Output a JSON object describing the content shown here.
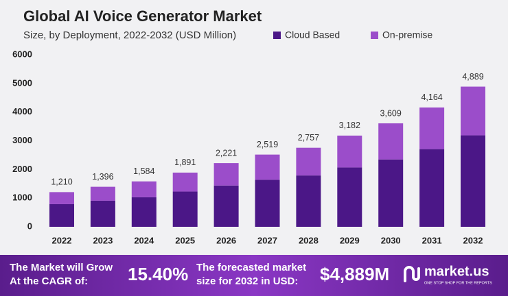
{
  "chart_data": {
    "type": "stacked_bar",
    "title": "Global AI Voice Generator Market",
    "subtitle": "Size, by Deployment, 2022-2032 (USD Million)",
    "categories": [
      "2022",
      "2023",
      "2024",
      "2025",
      "2026",
      "2027",
      "2028",
      "2029",
      "2030",
      "2031",
      "2032"
    ],
    "series": [
      {
        "name": "Cloud Based",
        "color": "#4b1787",
        "values": [
          790,
          910,
          1030,
          1230,
          1440,
          1640,
          1790,
          2070,
          2350,
          2710,
          3190
        ]
      },
      {
        "name": "On-premise",
        "color": "#9b4dca",
        "values": [
          420,
          486,
          554,
          661,
          781,
          879,
          967,
          1112,
          1259,
          1454,
          1699
        ]
      }
    ],
    "totals": {
      "values": [
        1210,
        1396,
        1584,
        1891,
        2221,
        2519,
        2757,
        3182,
        3609,
        4164,
        4889
      ],
      "value_labels": [
        "1,210",
        "1,396",
        "1,584",
        "1,891",
        "2,221",
        "2,519",
        "2,757",
        "3,182",
        "3,609",
        "4,164",
        "4,889"
      ]
    },
    "ylim": [
      0,
      6000
    ],
    "yticks": [
      0,
      1000,
      2000,
      3000,
      4000,
      5000,
      6000
    ],
    "grid": false
  },
  "footer": {
    "cagr_label": [
      "The Market will Grow",
      "At the CAGR of:"
    ],
    "cagr_value": "15.40%",
    "forecast_label": [
      "The forecasted market",
      "size for 2032 in USD:"
    ],
    "forecast_value": "$4,889M",
    "brand": "market.us",
    "tagline": "ONE STOP SHOP FOR THE REPORTS"
  }
}
